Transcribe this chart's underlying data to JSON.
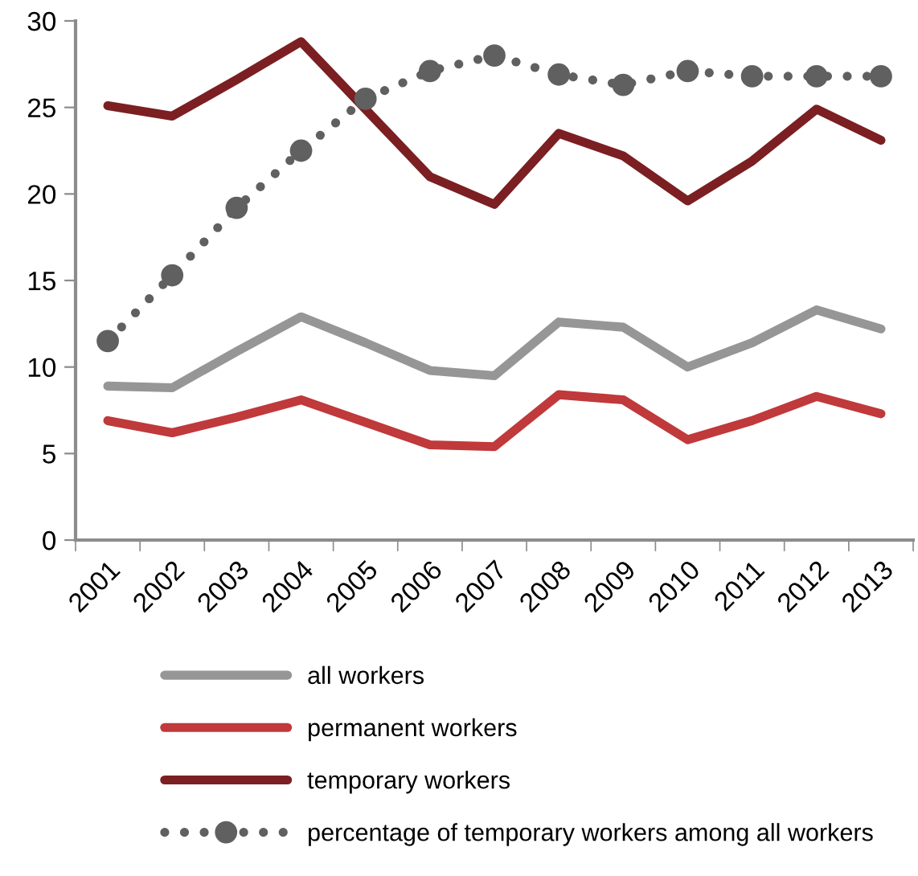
{
  "chart_data": {
    "type": "line",
    "categories": [
      "2001",
      "2002",
      "2003",
      "2004",
      "2005",
      "2006",
      "2007",
      "2008",
      "2009",
      "2010",
      "2011",
      "2012",
      "2013"
    ],
    "ylim": [
      0,
      30
    ],
    "yticks": [
      0,
      5,
      10,
      15,
      20,
      25,
      30
    ],
    "grid": false,
    "legend": "bottom",
    "series": [
      {
        "name": "all workers",
        "color": "#969696",
        "line_style": "solid",
        "marker": "none",
        "values": [
          8.9,
          8.8,
          10.9,
          12.9,
          11.4,
          9.8,
          9.5,
          12.6,
          12.3,
          10.0,
          11.4,
          13.3,
          12.2
        ]
      },
      {
        "name": "permanent workers",
        "color": "#c0393b",
        "line_style": "solid",
        "marker": "none",
        "values": [
          6.9,
          6.2,
          7.1,
          8.1,
          6.8,
          5.5,
          5.4,
          8.4,
          8.1,
          5.8,
          6.9,
          8.3,
          7.3
        ]
      },
      {
        "name": "temporary workers",
        "color": "#7b1f22",
        "line_style": "solid",
        "marker": "none",
        "values": [
          25.1,
          24.5,
          26.6,
          28.8,
          24.9,
          21.0,
          19.4,
          23.5,
          22.2,
          19.6,
          21.9,
          24.9,
          23.1
        ]
      },
      {
        "name": "percentage of temporary workers among all workers",
        "color": "#606060",
        "line_style": "dotted",
        "marker": "circle",
        "values": [
          11.5,
          15.3,
          19.2,
          22.5,
          25.5,
          27.1,
          28.0,
          26.9,
          26.3,
          27.1,
          26.8,
          26.8,
          26.8
        ]
      }
    ]
  }
}
